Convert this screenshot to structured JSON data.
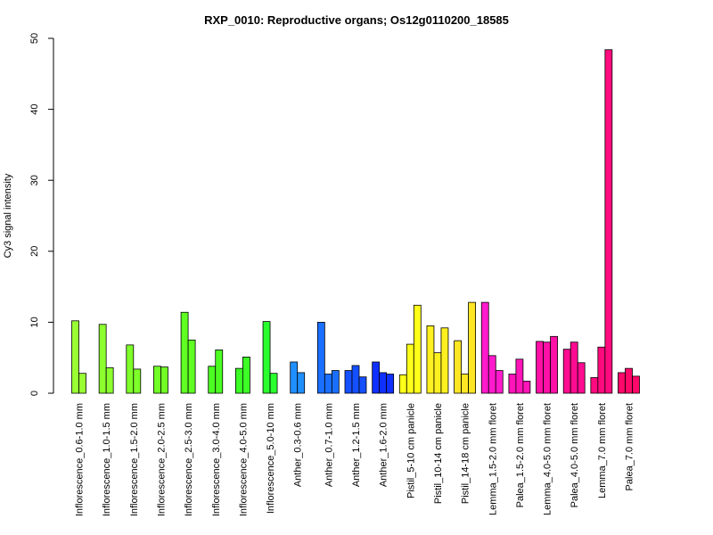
{
  "chart_data": {
    "type": "bar",
    "title": "RXP_0010: Reproductive organs; Os12g0110200_18585",
    "xlabel": "",
    "ylabel": "Cy3 signal intensity",
    "ylim": [
      0,
      50
    ],
    "yticks": [
      0,
      10,
      20,
      30,
      40,
      50
    ],
    "grid": false,
    "groups": [
      {
        "label": "Inflorescence_0.6-1.0 mm",
        "values": [
          10.2,
          2.8
        ],
        "colors": [
          "#99ff33",
          "#99ff33"
        ]
      },
      {
        "label": "Inflorescence_1.0-1.5 mm",
        "values": [
          9.7,
          3.6
        ],
        "colors": [
          "#8cff2e",
          "#8cff2e"
        ]
      },
      {
        "label": "Inflorescence_1.5-2.0 mm",
        "values": [
          6.8,
          3.4
        ],
        "colors": [
          "#7fff2a",
          "#7fff2a"
        ]
      },
      {
        "label": "Inflorescence_2.0-2.5 mm",
        "values": [
          3.8,
          3.7
        ],
        "colors": [
          "#72ff26",
          "#72ff26"
        ]
      },
      {
        "label": "Inflorescence_2.5-3.0 mm",
        "values": [
          11.4,
          7.5
        ],
        "colors": [
          "#5fff22",
          "#5fff22"
        ]
      },
      {
        "label": "Inflorescence_3.0-4.0 mm",
        "values": [
          3.8,
          6.1
        ],
        "colors": [
          "#4cff22",
          "#4cff22"
        ]
      },
      {
        "label": "Inflorescence_4.0-5.0 mm",
        "values": [
          3.5,
          5.1
        ],
        "colors": [
          "#3cff26",
          "#3cff26"
        ]
      },
      {
        "label": "Inflorescence_5.0-10 mm",
        "values": [
          10.1,
          2.8
        ],
        "colors": [
          "#2aff2e",
          "#2aff2e"
        ]
      },
      {
        "label": "Anther_0.3-0.6 mm",
        "values": [
          4.4,
          2.9
        ],
        "colors": [
          "#1f8fff",
          "#1f8fff"
        ]
      },
      {
        "label": "Anther_0.7-1.0 mm",
        "values": [
          10.0,
          2.7,
          3.2
        ],
        "colors": [
          "#1a6fff",
          "#1a6fff",
          "#1a6fff"
        ]
      },
      {
        "label": "Anther_1.2-1.5 mm",
        "values": [
          3.2,
          3.9,
          2.3
        ],
        "colors": [
          "#1550ff",
          "#1550ff",
          "#1550ff"
        ]
      },
      {
        "label": "Anther_1.6-2.0 mm",
        "values": [
          4.4,
          2.9,
          2.7
        ],
        "colors": [
          "#1030ff",
          "#1030ff",
          "#1030ff"
        ]
      },
      {
        "label": "Pistil_5-10 cm panicle",
        "values": [
          2.6,
          6.9,
          12.4
        ],
        "colors": [
          "#ffff1a",
          "#ffff1a",
          "#ffff1a"
        ]
      },
      {
        "label": "Pistil_10-14 cm panicle",
        "values": [
          9.5,
          5.7,
          9.2
        ],
        "colors": [
          "#fff020",
          "#fff020",
          "#fff020"
        ]
      },
      {
        "label": "Pistil_14-18 cm panicle",
        "values": [
          7.4,
          2.7,
          12.8
        ],
        "colors": [
          "#ffe624",
          "#ffe624",
          "#ffe624"
        ]
      },
      {
        "label": "Lemma_1.5-2.0 mm floret",
        "values": [
          12.8,
          5.3,
          3.2
        ],
        "colors": [
          "#ff1acc",
          "#ff1acc",
          "#ff1acc"
        ]
      },
      {
        "label": "Palea_1.5-2.0 mm floret",
        "values": [
          2.7,
          4.8,
          1.7
        ],
        "colors": [
          "#ff14b8",
          "#ff14b8",
          "#ff14b8"
        ]
      },
      {
        "label": "Lemma_4.0-5.0 mm floret",
        "values": [
          7.3,
          7.2,
          8.0
        ],
        "colors": [
          "#ff10a6",
          "#ff10a6",
          "#ff10a6"
        ]
      },
      {
        "label": "Palea_4.0-5.0 mm floret",
        "values": [
          6.2,
          7.2,
          4.3
        ],
        "colors": [
          "#ff0c92",
          "#ff0c92",
          "#ff0c92"
        ]
      },
      {
        "label": "Lemma_7.0 mm floret",
        "values": [
          2.2,
          6.5,
          48.4
        ],
        "colors": [
          "#ff0a7e",
          "#ff0a7e",
          "#ff0a7e"
        ]
      },
      {
        "label": "Palea_7.0 mm floret",
        "values": [
          2.9,
          3.5,
          2.4
        ],
        "colors": [
          "#ff086a",
          "#ff086a",
          "#ff086a"
        ]
      }
    ]
  }
}
